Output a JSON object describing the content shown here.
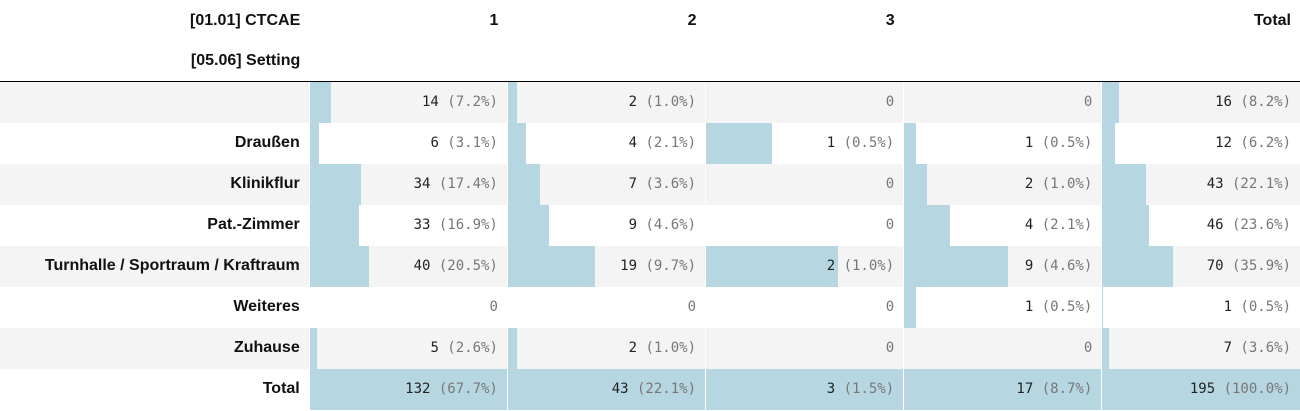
{
  "header": {
    "row_var": "[05.06] Setting",
    "col_var": "[01.01] CTCAE",
    "columns": [
      "1",
      "2",
      "3",
      "",
      "Total"
    ]
  },
  "rows": [
    {
      "label": "",
      "cells": [
        {
          "count": 14,
          "pct": "(7.2%)",
          "frac": 0.106
        },
        {
          "count": 2,
          "pct": "(1.0%)",
          "frac": 0.047
        },
        {
          "count": 0,
          "pct": "",
          "frac": 0
        },
        {
          "count": 0,
          "pct": "",
          "frac": 0
        },
        {
          "count": 16,
          "pct": "(8.2%)",
          "frac": 0.082
        }
      ]
    },
    {
      "label": "Draußen",
      "cells": [
        {
          "count": 6,
          "pct": "(3.1%)",
          "frac": 0.045
        },
        {
          "count": 4,
          "pct": "(2.1%)",
          "frac": 0.093
        },
        {
          "count": 1,
          "pct": "(0.5%)",
          "frac": 0.333
        },
        {
          "count": 1,
          "pct": "(0.5%)",
          "frac": 0.059
        },
        {
          "count": 12,
          "pct": "(6.2%)",
          "frac": 0.062
        }
      ]
    },
    {
      "label": "Klinikflur",
      "cells": [
        {
          "count": 34,
          "pct": "(17.4%)",
          "frac": 0.258
        },
        {
          "count": 7,
          "pct": "(3.6%)",
          "frac": 0.163
        },
        {
          "count": 0,
          "pct": "",
          "frac": 0
        },
        {
          "count": 2,
          "pct": "(1.0%)",
          "frac": 0.118
        },
        {
          "count": 43,
          "pct": "(22.1%)",
          "frac": 0.221
        }
      ]
    },
    {
      "label": "Pat.-Zimmer",
      "cells": [
        {
          "count": 33,
          "pct": "(16.9%)",
          "frac": 0.25
        },
        {
          "count": 9,
          "pct": "(4.6%)",
          "frac": 0.209
        },
        {
          "count": 0,
          "pct": "",
          "frac": 0
        },
        {
          "count": 4,
          "pct": "(2.1%)",
          "frac": 0.235
        },
        {
          "count": 46,
          "pct": "(23.6%)",
          "frac": 0.236
        }
      ]
    },
    {
      "label": "Turnhalle / Sportraum / Kraftraum",
      "cells": [
        {
          "count": 40,
          "pct": "(20.5%)",
          "frac": 0.303
        },
        {
          "count": 19,
          "pct": "(9.7%)",
          "frac": 0.442
        },
        {
          "count": 2,
          "pct": "(1.0%)",
          "frac": 0.667
        },
        {
          "count": 9,
          "pct": "(4.6%)",
          "frac": 0.529
        },
        {
          "count": 70,
          "pct": "(35.9%)",
          "frac": 0.359
        }
      ]
    },
    {
      "label": "Weiteres",
      "cells": [
        {
          "count": 0,
          "pct": "",
          "frac": 0
        },
        {
          "count": 0,
          "pct": "",
          "frac": 0
        },
        {
          "count": 0,
          "pct": "",
          "frac": 0
        },
        {
          "count": 1,
          "pct": "(0.5%)",
          "frac": 0.059
        },
        {
          "count": 1,
          "pct": "(0.5%)",
          "frac": 0.005
        }
      ]
    },
    {
      "label": "Zuhause",
      "cells": [
        {
          "count": 5,
          "pct": "(2.6%)",
          "frac": 0.038
        },
        {
          "count": 2,
          "pct": "(1.0%)",
          "frac": 0.047
        },
        {
          "count": 0,
          "pct": "",
          "frac": 0
        },
        {
          "count": 0,
          "pct": "",
          "frac": 0
        },
        {
          "count": 7,
          "pct": "(3.6%)",
          "frac": 0.036
        }
      ]
    },
    {
      "label": "Total",
      "total": true,
      "cells": [
        {
          "count": 132,
          "pct": "(67.7%)",
          "frac": 1
        },
        {
          "count": 43,
          "pct": "(22.1%)",
          "frac": 1
        },
        {
          "count": 3,
          "pct": "(1.5%)",
          "frac": 1
        },
        {
          "count": 17,
          "pct": "(8.7%)",
          "frac": 1
        },
        {
          "count": 195,
          "pct": "(100.0%)",
          "frac": 1
        }
      ]
    }
  ],
  "colors": {
    "bar": "#b6d7e2",
    "stripe": "#f4f4f4"
  }
}
